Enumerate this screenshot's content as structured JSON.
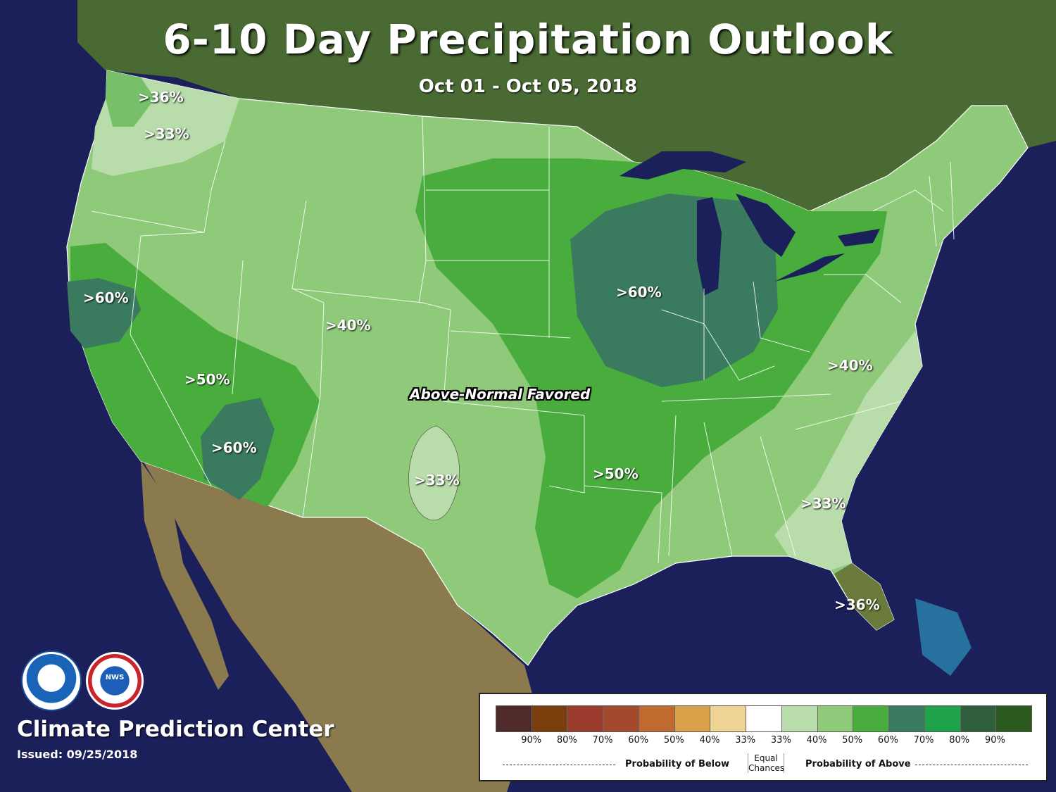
{
  "title": "6-10 Day Precipitation Outlook",
  "subtitle": "Oct 01 - Oct 05, 2018",
  "center_label": "Above-Normal Favored",
  "region_labels": [
    {
      "id": "nw-36",
      "text": ">36%"
    },
    {
      "id": "nw-33",
      "text": ">33%"
    },
    {
      "id": "ca-60",
      "text": ">60%"
    },
    {
      "id": "nv-50",
      "text": ">50%"
    },
    {
      "id": "az-60",
      "text": ">60%"
    },
    {
      "id": "co-40",
      "text": ">40%"
    },
    {
      "id": "tx-33",
      "text": ">33%"
    },
    {
      "id": "il-60",
      "text": ">60%"
    },
    {
      "id": "ar-50",
      "text": ">50%"
    },
    {
      "id": "va-40",
      "text": ">40%"
    },
    {
      "id": "ga-33",
      "text": ">33%"
    },
    {
      "id": "fl-36",
      "text": ">36%"
    }
  ],
  "organization": "Climate Prediction Center",
  "issued": "Issued: 09/25/2018",
  "logos": {
    "noaa": "NOAA",
    "nws": "NWS"
  },
  "legend": {
    "swatches": [
      "#4f2a2a",
      "#7a3d0c",
      "#9b3b2d",
      "#a34a2e",
      "#c06a30",
      "#d9a24a",
      "#efd494",
      "#ffffff",
      "#b8dcaa",
      "#8fc97a",
      "#48ad3c",
      "#3a7a5e",
      "#1ea34a",
      "#2f5e3d",
      "#2c5a1e"
    ],
    "ticks": [
      "90%",
      "80%",
      "70%",
      "60%",
      "50%",
      "40%",
      "33%",
      "33%",
      "40%",
      "50%",
      "60%",
      "70%",
      "80%",
      "90%"
    ],
    "below_label": "Probability of Below",
    "equal_label_1": "Equal",
    "equal_label_2": "Chances",
    "above_label": "Probability of Above"
  },
  "colors": {
    "ocean": "#1b1f5a",
    "land_north": "#3c5a2a",
    "land_mexico": "#8b7a4e",
    "cat_33": "#b8dcaa",
    "cat_40": "#8fc97a",
    "cat_50": "#48ad3c",
    "cat_60": "#3a7a5e"
  }
}
